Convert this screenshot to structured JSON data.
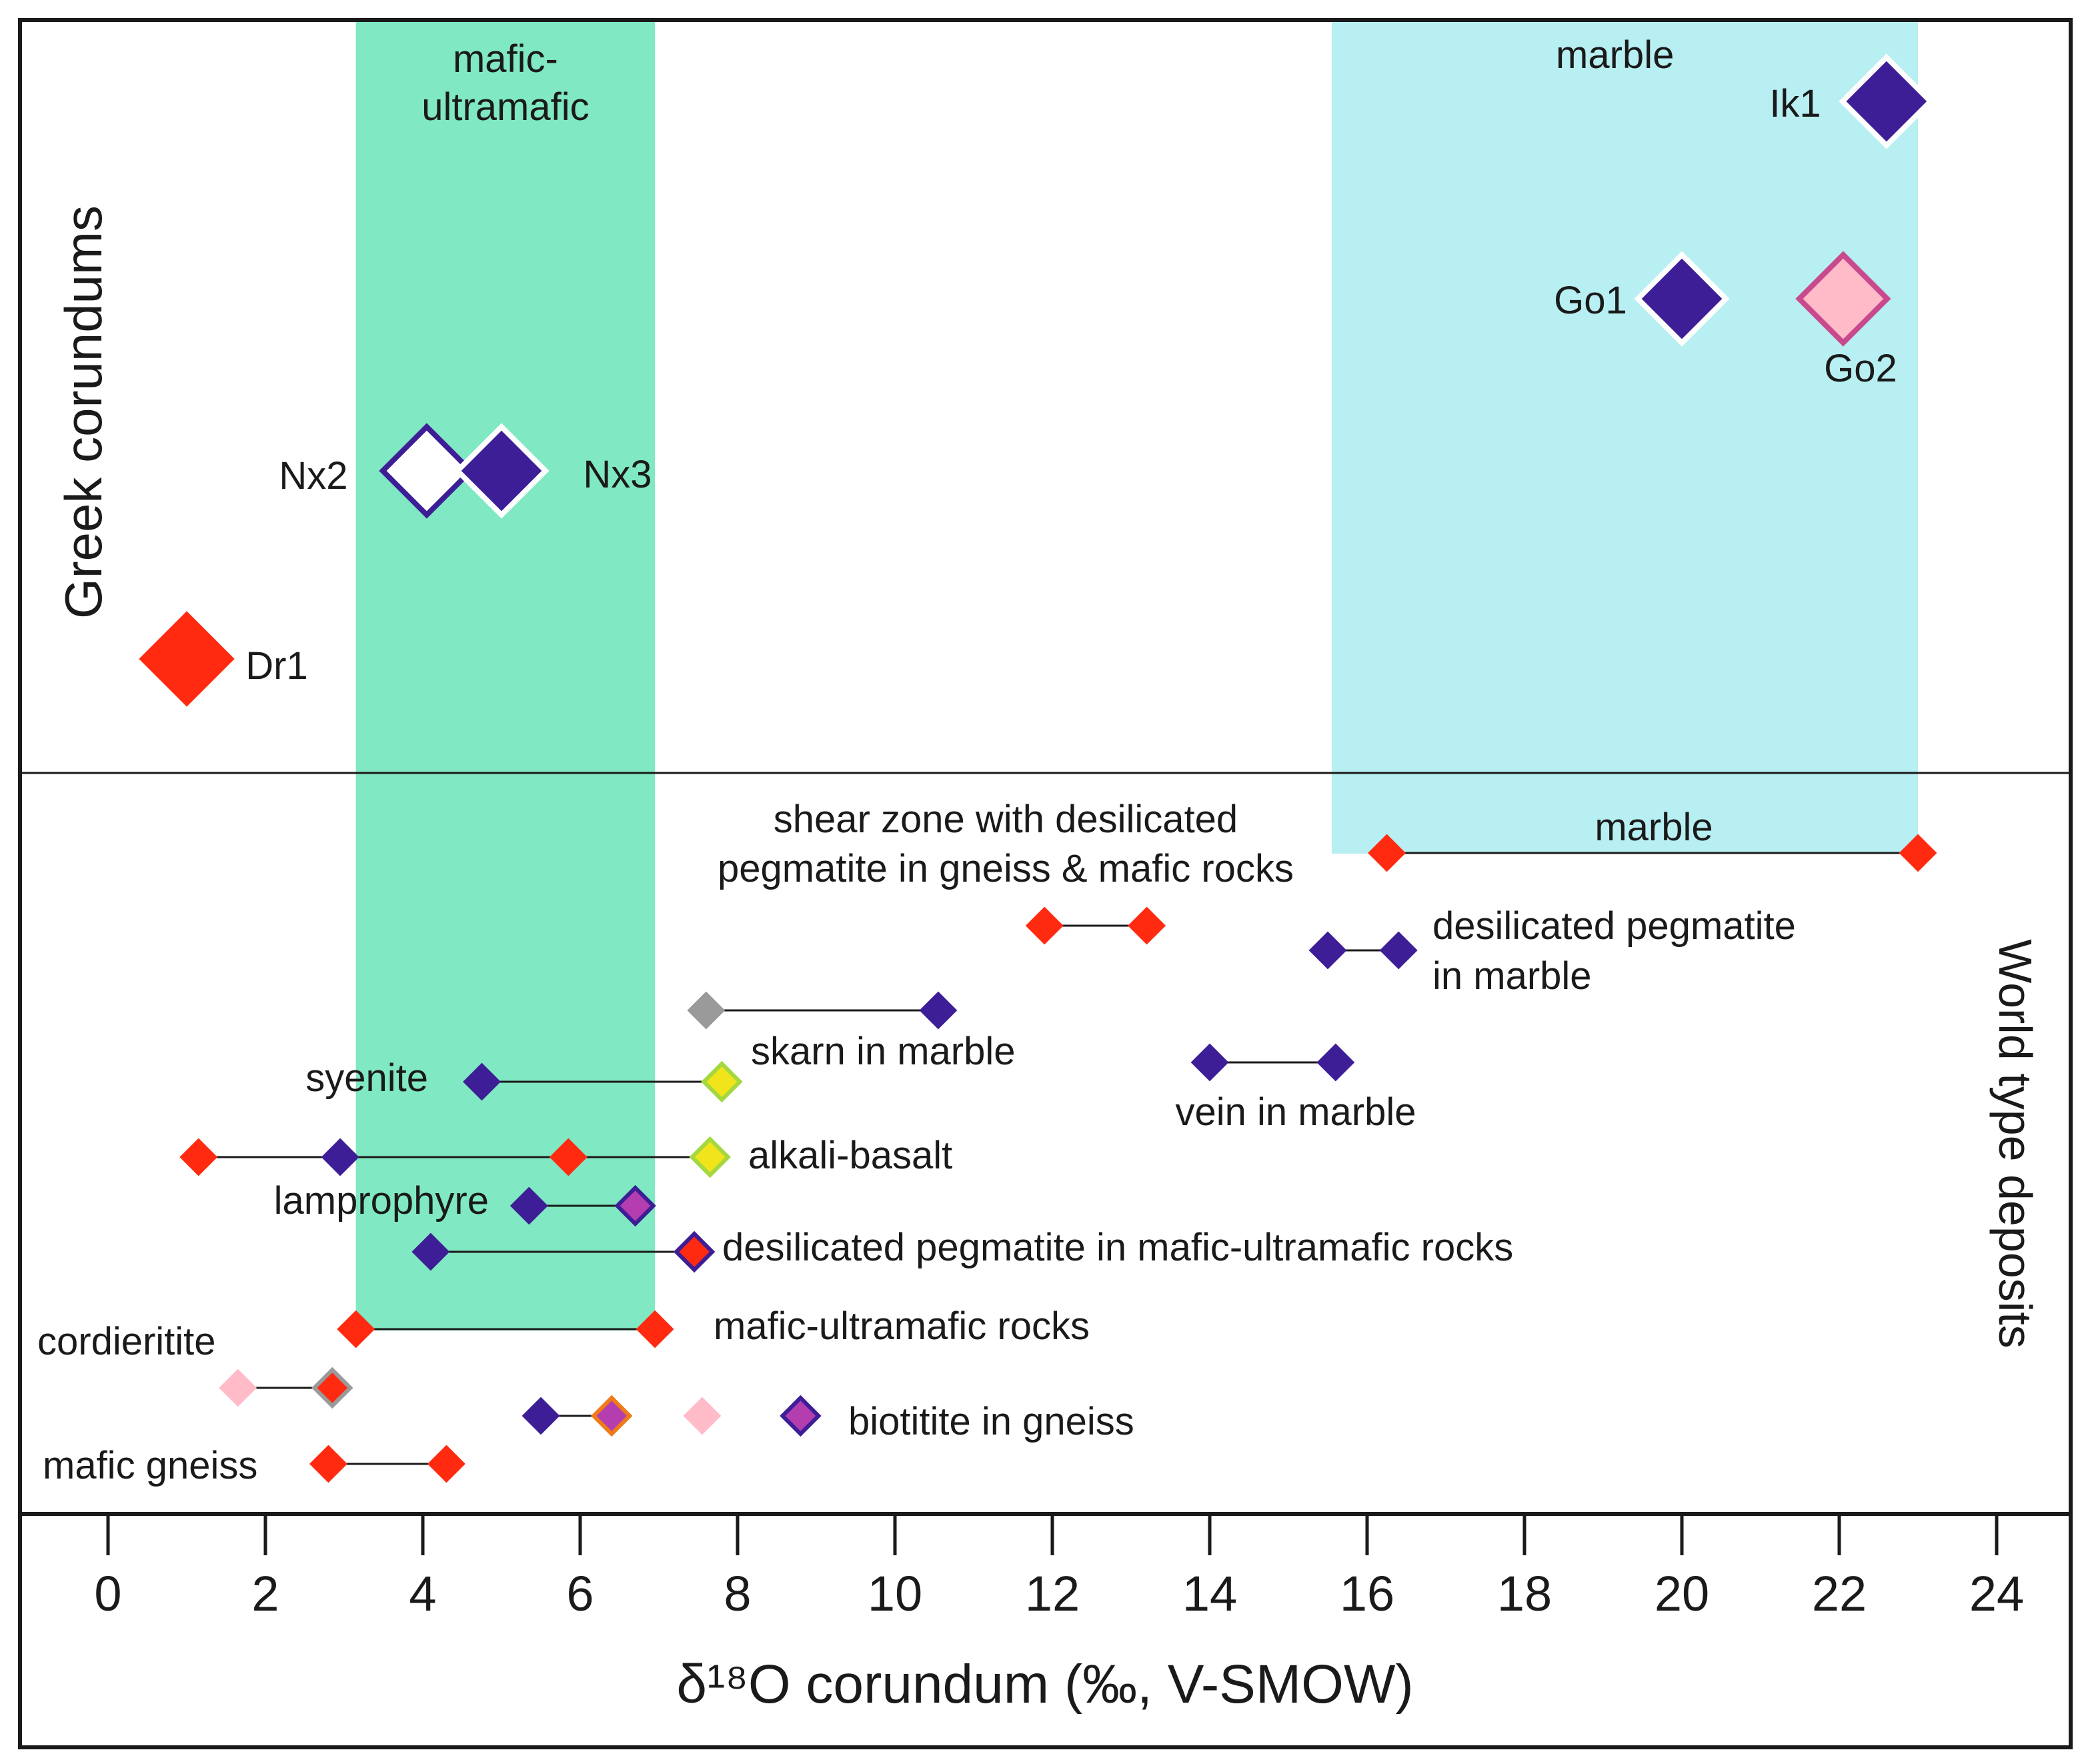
{
  "chart_data": {
    "type": "scatter",
    "title": "",
    "xlabel": "δ¹⁸O corundum (‰, V-SMOW)",
    "ylabel": "",
    "xlim": [
      -1.1,
      24.3
    ],
    "x_ticks": [
      0,
      2,
      4,
      6,
      8,
      10,
      12,
      14,
      16,
      18,
      20,
      22,
      24
    ],
    "x_tick_labels": [
      "0",
      "2",
      "4",
      "6",
      "8",
      "10",
      "12",
      "14",
      "16",
      "18",
      "20",
      "22",
      "24"
    ],
    "grid": false,
    "colors": {
      "red": "#ff2a10",
      "navy": "#3d1e96",
      "pink": "#ffbcc8",
      "magenta": "#c9498e",
      "green_band": "#80e8c2",
      "cyan_band": "#b7eff2",
      "gray": "#9a9a9a",
      "yellow": "#f2e41a",
      "lime": "#a4d83e",
      "purple": "#b43eb0",
      "orange": "#f07a18",
      "white": "#ffffff"
    },
    "panels": {
      "top": {
        "label": "Greek corundums"
      },
      "bottom": {
        "label": "World type deposits"
      }
    },
    "bands": [
      {
        "name": "mafic-ultramafic",
        "label_lines": [
          "mafic-",
          "ultramafic"
        ],
        "x_range": [
          3.15,
          6.95
        ],
        "color": "green_band",
        "extends_to": "mafic-ultramafic rocks"
      },
      {
        "name": "marble",
        "label": "marble",
        "x_range": [
          15.55,
          23.0
        ],
        "color": "cyan_band",
        "extends_to": "marble"
      }
    ],
    "greek_samples": [
      {
        "label": "Ik1",
        "x": 22.6,
        "fill": "navy",
        "stroke": "white",
        "size": "large",
        "label_side": "left"
      },
      {
        "label": "Go1",
        "x": 20.0,
        "fill": "navy",
        "stroke": "white",
        "size": "large",
        "label_side": "left"
      },
      {
        "label": "Go2",
        "x": 22.05,
        "fill": "pink",
        "stroke": "magenta",
        "size": "large",
        "label_side": "below"
      },
      {
        "label": "Nx2",
        "x": 4.05,
        "fill": "white",
        "stroke": "navy",
        "size": "large",
        "label_side": "left"
      },
      {
        "label": "Nx3",
        "x": 5.0,
        "fill": "navy",
        "stroke": "white",
        "size": "large",
        "label_side": "right"
      },
      {
        "label": "Dr1",
        "x": 1.0,
        "fill": "red",
        "stroke": "red",
        "size": "large",
        "label_side": "right"
      }
    ],
    "world_deposits": [
      {
        "name": "marble",
        "label": "marble",
        "points": [
          {
            "x": 16.25,
            "fill": "red",
            "stroke": "red"
          },
          {
            "x": 23.0,
            "fill": "red",
            "stroke": "red"
          }
        ]
      },
      {
        "name": "shear zone",
        "label_lines": [
          "shear zone with desilicated",
          "pegmatite in gneiss & mafic rocks"
        ],
        "points": [
          {
            "x": 11.9,
            "fill": "red",
            "stroke": "red"
          },
          {
            "x": 13.2,
            "fill": "red",
            "stroke": "red"
          }
        ]
      },
      {
        "name": "desilicated pegmatite in marble",
        "label_lines": [
          "desilicated pegmatite",
          "in marble"
        ],
        "points": [
          {
            "x": 15.5,
            "fill": "navy",
            "stroke": "navy"
          },
          {
            "x": 16.4,
            "fill": "navy",
            "stroke": "navy"
          }
        ]
      },
      {
        "name": "skarn in marble",
        "label": "skarn in marble",
        "points": [
          {
            "x": 7.6,
            "fill": "gray",
            "stroke": "gray"
          },
          {
            "x": 10.55,
            "fill": "navy",
            "stroke": "navy"
          }
        ]
      },
      {
        "name": "vein in marble",
        "label": "vein in marble",
        "points": [
          {
            "x": 14.0,
            "fill": "navy",
            "stroke": "navy"
          },
          {
            "x": 15.6,
            "fill": "navy",
            "stroke": "navy"
          }
        ]
      },
      {
        "name": "syenite",
        "label": "syenite",
        "points": [
          {
            "x": 4.75,
            "fill": "navy",
            "stroke": "navy"
          },
          {
            "x": 7.8,
            "fill": "yellow",
            "stroke": "lime"
          }
        ]
      },
      {
        "name": "alkali-basalt",
        "label": "alkali-basalt",
        "points": [
          {
            "x": 1.15,
            "fill": "red",
            "stroke": "red"
          },
          {
            "x": 2.95,
            "fill": "navy",
            "stroke": "navy"
          },
          {
            "x": 5.85,
            "fill": "red",
            "stroke": "red"
          },
          {
            "x": 7.65,
            "fill": "yellow",
            "stroke": "lime"
          }
        ]
      },
      {
        "name": "lamprophyre",
        "label": "lamprophyre",
        "points": [
          {
            "x": 5.35,
            "fill": "navy",
            "stroke": "navy"
          },
          {
            "x": 6.7,
            "fill": "purple",
            "stroke": "navy"
          }
        ]
      },
      {
        "name": "desilicated pegmatite in mafic-ultramafic rocks",
        "label": "desilicated pegmatite in mafic-ultramafic rocks",
        "points": [
          {
            "x": 4.1,
            "fill": "navy",
            "stroke": "navy"
          },
          {
            "x": 7.45,
            "fill": "red",
            "stroke": "navy"
          }
        ]
      },
      {
        "name": "mafic-ultramafic rocks",
        "label": "mafic-ultramafic rocks",
        "points": [
          {
            "x": 3.15,
            "fill": "red",
            "stroke": "red"
          },
          {
            "x": 6.95,
            "fill": "red",
            "stroke": "red"
          }
        ]
      },
      {
        "name": "cordieritite",
        "label": "cordieritite",
        "points": [
          {
            "x": 1.65,
            "fill": "pink",
            "stroke": "pink"
          },
          {
            "x": 2.85,
            "fill": "red",
            "stroke": "gray"
          }
        ]
      },
      {
        "name": "biotitite in gneiss",
        "label": "biotitite in gneiss",
        "points": [
          {
            "x": 5.5,
            "fill": "navy",
            "stroke": "navy"
          },
          {
            "x": 6.4,
            "fill": "purple",
            "stroke": "orange"
          }
        ],
        "extra_points": [
          {
            "x": 7.55,
            "fill": "pink",
            "stroke": "pink"
          },
          {
            "x": 8.8,
            "fill": "purple",
            "stroke": "navy"
          }
        ]
      },
      {
        "name": "mafic gneiss",
        "label": "mafic gneiss",
        "points": [
          {
            "x": 2.8,
            "fill": "red",
            "stroke": "red"
          },
          {
            "x": 4.3,
            "fill": "red",
            "stroke": "red"
          }
        ]
      }
    ]
  }
}
